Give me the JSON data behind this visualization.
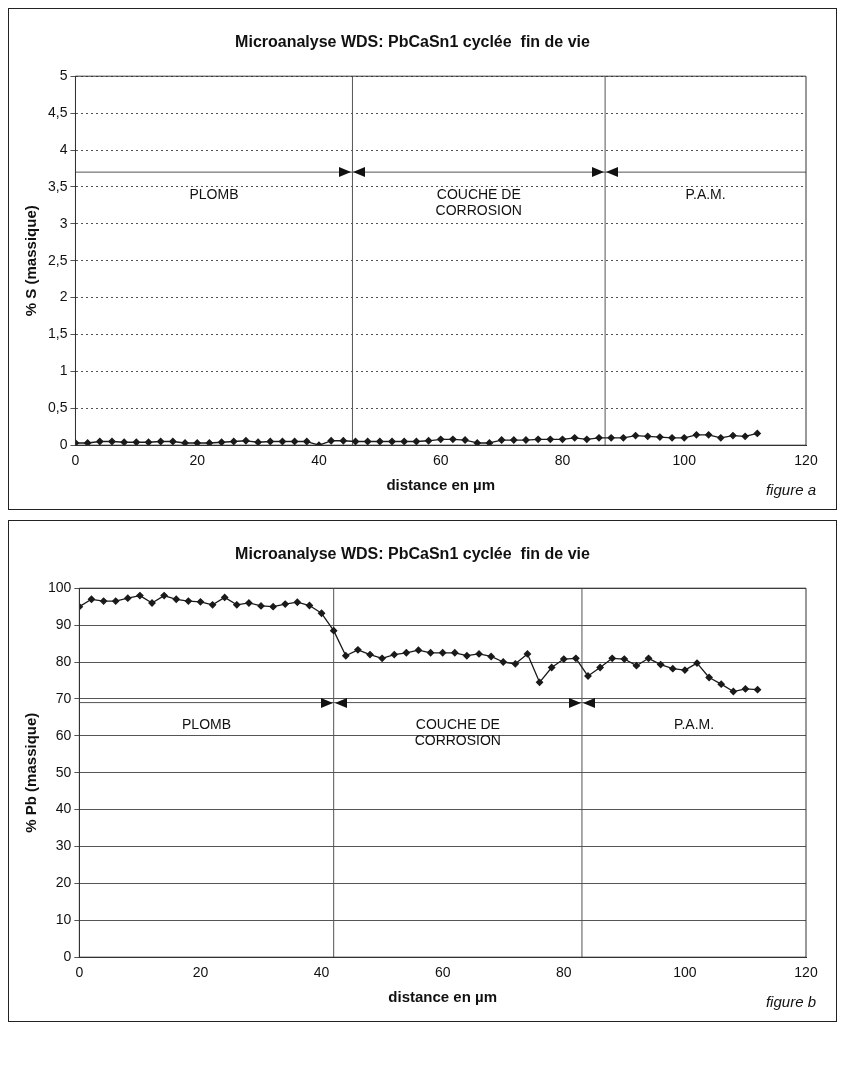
{
  "chart_data": [
    {
      "type": "line",
      "title": "Microanalyse WDS: PbCaSn1 cyclée  fin de vie",
      "xlabel": "distance en µm",
      "ylabel": "% S (massique)",
      "marker": "diamond",
      "line_style": "solid",
      "grid": "y",
      "legend": false,
      "x": [
        0,
        2,
        4,
        6,
        8,
        10,
        12,
        14,
        16,
        18,
        20,
        22,
        24,
        26,
        28,
        30,
        32,
        34,
        36,
        38,
        40,
        42,
        44,
        46,
        48,
        50,
        52,
        54,
        56,
        58,
        60,
        62,
        64,
        66,
        68,
        70,
        72,
        74,
        76,
        78,
        80,
        82,
        84,
        86,
        88,
        90,
        92,
        94,
        96,
        98,
        100,
        102,
        104,
        106,
        108,
        110,
        112
      ],
      "series": [
        {
          "color": "#1a1a1a",
          "values": [
            0.03,
            0.03,
            0.05,
            0.05,
            0.04,
            0.04,
            0.04,
            0.05,
            0.05,
            0.03,
            0.03,
            0.03,
            0.04,
            0.05,
            0.06,
            0.04,
            0.05,
            0.05,
            0.05,
            0.05,
            0.0,
            0.06,
            0.06,
            0.05,
            0.05,
            0.05,
            0.05,
            0.05,
            0.05,
            0.06,
            0.08,
            0.08,
            0.07,
            0.03,
            0.03,
            0.07,
            0.07,
            0.07,
            0.08,
            0.08,
            0.08,
            0.1,
            0.08,
            0.1,
            0.1,
            0.1,
            0.13,
            0.12,
            0.11,
            0.1,
            0.1,
            0.14,
            0.14,
            0.1,
            0.13,
            0.12,
            0.16
          ]
        }
      ],
      "xlim": [
        0,
        120
      ],
      "xticks": [
        0,
        20,
        40,
        60,
        80,
        100,
        120
      ],
      "ylim": [
        0,
        5
      ],
      "yticks": [
        0,
        {
          "value": 0.5,
          "label": "0,5"
        },
        1,
        {
          "value": 1.5,
          "label": "1,5"
        },
        2,
        {
          "value": 2.5,
          "label": "2,5"
        },
        3,
        {
          "value": 3.5,
          "label": "3,5"
        },
        4,
        {
          "value": 4.5,
          "label": "4,5"
        },
        5
      ],
      "ref_lines": [
        {
          "axis": "x",
          "value": 45.5,
          "color": "#555555"
        },
        {
          "axis": "x",
          "value": 87,
          "color": "#555555"
        },
        {
          "axis": "y",
          "value": 3.7,
          "color": "#555555"
        }
      ],
      "annotations": [
        "PLOMB",
        "COUCHE DE\nCORROSION",
        "P.A.M.",
        "figure a"
      ]
    },
    {
      "type": "line",
      "title": "Microanalyse WDS: PbCaSn1 cyclée  fin de vie",
      "xlabel": "distance en µm",
      "ylabel": "% Pb (massique)",
      "marker": "diamond",
      "line_style": "solid",
      "grid": "y",
      "legend": false,
      "x": [
        0,
        2,
        4,
        6,
        8,
        10,
        12,
        14,
        16,
        18,
        20,
        22,
        24,
        26,
        28,
        30,
        32,
        34,
        36,
        38,
        40,
        42,
        44,
        46,
        48,
        50,
        52,
        54,
        56,
        58,
        60,
        62,
        64,
        66,
        68,
        70,
        72,
        74,
        76,
        78,
        80,
        82,
        84,
        86,
        88,
        90,
        92,
        94,
        96,
        98,
        100,
        102,
        104,
        106,
        108,
        110,
        112
      ],
      "series": [
        {
          "color": "#1a1a1a",
          "values": [
            95,
            97,
            96.5,
            96.5,
            97.3,
            98,
            96,
            98,
            97,
            96.5,
            96.3,
            95.5,
            97.5,
            95.5,
            96,
            95.2,
            95,
            95.7,
            96.2,
            95.3,
            93.2,
            88.5,
            81.7,
            83.3,
            82,
            81,
            82,
            82.5,
            83.2,
            82.5,
            82.5,
            82.5,
            81.7,
            82.2,
            81.5,
            80,
            79.5,
            82.2,
            74.5,
            78.5,
            80.8,
            81,
            76.2,
            78.5,
            81,
            80.8,
            79,
            81,
            79.3,
            78.2,
            77.8,
            79.7,
            75.8,
            74,
            72,
            72.7,
            72.5
          ]
        }
      ],
      "xlim": [
        0,
        120
      ],
      "xticks": [
        0,
        20,
        40,
        60,
        80,
        100,
        120
      ],
      "ylim": [
        0,
        100
      ],
      "yticks": [
        0,
        10,
        20,
        30,
        40,
        50,
        60,
        70,
        80,
        90,
        100
      ],
      "ref_lines": [
        {
          "axis": "x",
          "value": 42,
          "color": "#555555"
        },
        {
          "axis": "x",
          "value": 83,
          "color": "#555555"
        },
        {
          "axis": "y",
          "value": 69,
          "color": "#555555"
        }
      ],
      "annotations": [
        "PLOMB",
        "COUCHE DE\nCORROSION",
        "P.A.M.",
        "figure b"
      ]
    }
  ]
}
